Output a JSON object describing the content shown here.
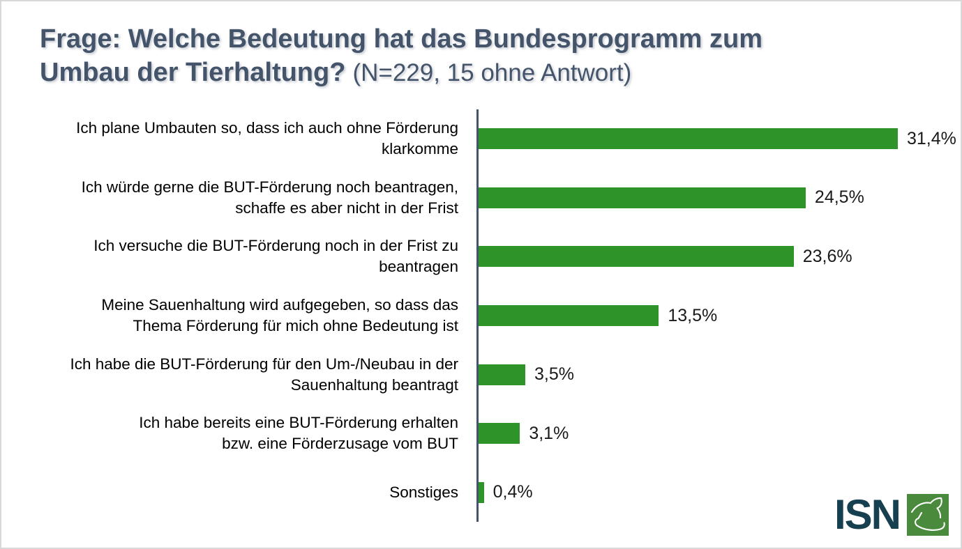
{
  "title": {
    "line1": "Frage: Welche Bedeutung hat das Bundesprogramm zum",
    "line2_bold": "Umbau der Tierhaltung?",
    "line2_note": "(N=229, 15 ohne Antwort)"
  },
  "chart_data": {
    "type": "bar",
    "orientation": "horizontal",
    "title": "Frage: Welche Bedeutung hat das Bundesprogramm zum Umbau der Tierhaltung? (N=229, 15 ohne Antwort)",
    "n_total": 229,
    "n_no_answer": 15,
    "categories": [
      "Ich plane Umbauten so, dass ich auch ohne Förderung klarkomme",
      "Ich würde gerne die BUT-Förderung noch beantragen, schaffe es aber nicht in der Frist",
      "Ich versuche die BUT-Förderung noch in der Frist zu beantragen",
      "Meine Sauenhaltung wird aufgegeben, so dass das Thema Förderung für mich ohne Bedeutung ist",
      "Ich habe die BUT-Förderung für den Um-/Neubau in der Sauenhaltung beantragt",
      "Ich habe bereits eine BUT-Förderung erhalten bzw. eine Förderzusage vom BUT",
      "Sonstiges"
    ],
    "category_lines": [
      [
        "Ich plane Umbauten so, dass ich auch ohne Förderung",
        "klarkomme"
      ],
      [
        "Ich würde gerne die BUT-Förderung noch beantragen,",
        "schaffe es aber nicht in der Frist"
      ],
      [
        "Ich versuche die BUT-Förderung noch in der Frist zu",
        "beantragen"
      ],
      [
        "Meine Sauenhaltung wird aufgegeben, so dass das",
        "Thema Förderung für mich ohne Bedeutung ist"
      ],
      [
        "Ich habe die BUT-Förderung für den Um-/Neubau in der",
        "Sauenhaltung beantragt"
      ],
      [
        "Ich habe bereits eine BUT-Förderung erhalten",
        "bzw. eine Förderzusage vom BUT"
      ],
      [
        "Sonstiges"
      ]
    ],
    "values": [
      31.4,
      24.5,
      23.6,
      13.5,
      3.5,
      3.1,
      0.4
    ],
    "value_labels": [
      "31,4%",
      "24,5%",
      "23,6%",
      "13,5%",
      "3,5%",
      "3,1%",
      "0,4%"
    ],
    "xlim": [
      0,
      36.3
    ],
    "grid": false,
    "legend": false,
    "bar_color": "#2e942a",
    "axis_color": "#44546a"
  },
  "logo": {
    "text": "ISN",
    "icon": "pig-head-icon",
    "text_color": "#16404f",
    "square_color": "#4a8a3c"
  }
}
